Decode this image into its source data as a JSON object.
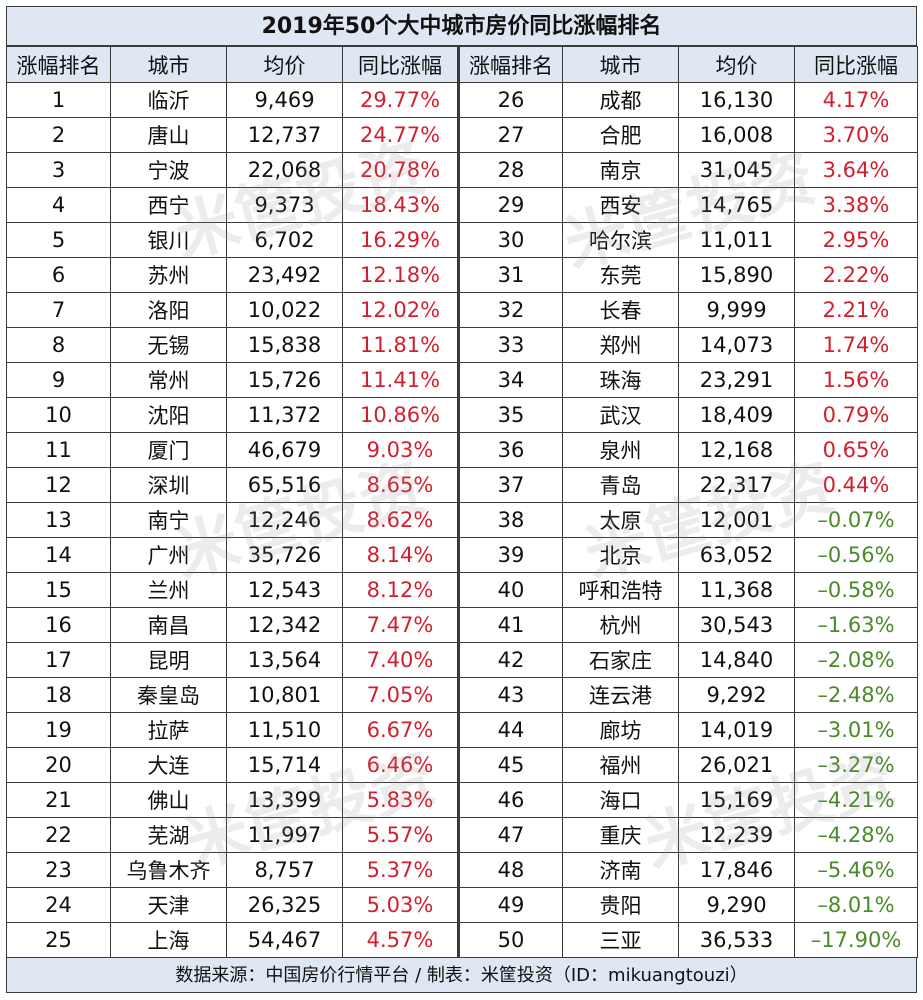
{
  "title": "2019年50个大中城市房价同比涨幅排名",
  "headers": [
    "涨幅排名",
    "城市",
    "均价",
    "同比涨幅"
  ],
  "left_rows": [
    {
      "rank": "1",
      "city": "临沂",
      "price": "9,469",
      "change": "29.77%",
      "dir": "pos"
    },
    {
      "rank": "2",
      "city": "唐山",
      "price": "12,737",
      "change": "24.77%",
      "dir": "pos"
    },
    {
      "rank": "3",
      "city": "宁波",
      "price": "22,068",
      "change": "20.78%",
      "dir": "pos"
    },
    {
      "rank": "4",
      "city": "西宁",
      "price": "9,373",
      "change": "18.43%",
      "dir": "pos"
    },
    {
      "rank": "5",
      "city": "银川",
      "price": "6,702",
      "change": "16.29%",
      "dir": "pos"
    },
    {
      "rank": "6",
      "city": "苏州",
      "price": "23,492",
      "change": "12.18%",
      "dir": "pos"
    },
    {
      "rank": "7",
      "city": "洛阳",
      "price": "10,022",
      "change": "12.02%",
      "dir": "pos"
    },
    {
      "rank": "8",
      "city": "无锡",
      "price": "15,838",
      "change": "11.81%",
      "dir": "pos"
    },
    {
      "rank": "9",
      "city": "常州",
      "price": "15,726",
      "change": "11.41%",
      "dir": "pos"
    },
    {
      "rank": "10",
      "city": "沈阳",
      "price": "11,372",
      "change": "10.86%",
      "dir": "pos"
    },
    {
      "rank": "11",
      "city": "厦门",
      "price": "46,679",
      "change": "9.03%",
      "dir": "pos"
    },
    {
      "rank": "12",
      "city": "深圳",
      "price": "65,516",
      "change": "8.65%",
      "dir": "pos"
    },
    {
      "rank": "13",
      "city": "南宁",
      "price": "12,246",
      "change": "8.62%",
      "dir": "pos"
    },
    {
      "rank": "14",
      "city": "广州",
      "price": "35,726",
      "change": "8.14%",
      "dir": "pos"
    },
    {
      "rank": "15",
      "city": "兰州",
      "price": "12,543",
      "change": "8.12%",
      "dir": "pos"
    },
    {
      "rank": "16",
      "city": "南昌",
      "price": "12,342",
      "change": "7.47%",
      "dir": "pos"
    },
    {
      "rank": "17",
      "city": "昆明",
      "price": "13,564",
      "change": "7.40%",
      "dir": "pos"
    },
    {
      "rank": "18",
      "city": "秦皇岛",
      "price": "10,801",
      "change": "7.05%",
      "dir": "pos"
    },
    {
      "rank": "19",
      "city": "拉萨",
      "price": "11,510",
      "change": "6.67%",
      "dir": "pos"
    },
    {
      "rank": "20",
      "city": "大连",
      "price": "15,714",
      "change": "6.46%",
      "dir": "pos"
    },
    {
      "rank": "21",
      "city": "佛山",
      "price": "13,399",
      "change": "5.83%",
      "dir": "pos"
    },
    {
      "rank": "22",
      "city": "芜湖",
      "price": "11,997",
      "change": "5.57%",
      "dir": "pos"
    },
    {
      "rank": "23",
      "city": "乌鲁木齐",
      "price": "8,757",
      "change": "5.37%",
      "dir": "pos"
    },
    {
      "rank": "24",
      "city": "天津",
      "price": "26,325",
      "change": "5.03%",
      "dir": "pos"
    },
    {
      "rank": "25",
      "city": "上海",
      "price": "54,467",
      "change": "4.57%",
      "dir": "pos"
    }
  ],
  "right_rows": [
    {
      "rank": "26",
      "city": "成都",
      "price": "16,130",
      "change": "4.17%",
      "dir": "pos"
    },
    {
      "rank": "27",
      "city": "合肥",
      "price": "16,008",
      "change": "3.70%",
      "dir": "pos"
    },
    {
      "rank": "28",
      "city": "南京",
      "price": "31,045",
      "change": "3.64%",
      "dir": "pos"
    },
    {
      "rank": "29",
      "city": "西安",
      "price": "14,765",
      "change": "3.38%",
      "dir": "pos"
    },
    {
      "rank": "30",
      "city": "哈尔滨",
      "price": "11,011",
      "change": "2.95%",
      "dir": "pos"
    },
    {
      "rank": "31",
      "city": "东莞",
      "price": "15,890",
      "change": "2.22%",
      "dir": "pos"
    },
    {
      "rank": "32",
      "city": "长春",
      "price": "9,999",
      "change": "2.21%",
      "dir": "pos"
    },
    {
      "rank": "33",
      "city": "郑州",
      "price": "14,073",
      "change": "1.74%",
      "dir": "pos"
    },
    {
      "rank": "34",
      "city": "珠海",
      "price": "23,291",
      "change": "1.56%",
      "dir": "pos"
    },
    {
      "rank": "35",
      "city": "武汉",
      "price": "18,409",
      "change": "0.79%",
      "dir": "pos"
    },
    {
      "rank": "36",
      "city": "泉州",
      "price": "12,168",
      "change": "0.65%",
      "dir": "pos"
    },
    {
      "rank": "37",
      "city": "青岛",
      "price": "22,317",
      "change": "0.44%",
      "dir": "pos"
    },
    {
      "rank": "38",
      "city": "太原",
      "price": "12,001",
      "change": "–0.07%",
      "dir": "neg"
    },
    {
      "rank": "39",
      "city": "北京",
      "price": "63,052",
      "change": "–0.56%",
      "dir": "neg"
    },
    {
      "rank": "40",
      "city": "呼和浩特",
      "price": "11,368",
      "change": "–0.58%",
      "dir": "neg"
    },
    {
      "rank": "41",
      "city": "杭州",
      "price": "30,543",
      "change": "–1.63%",
      "dir": "neg"
    },
    {
      "rank": "42",
      "city": "石家庄",
      "price": "14,840",
      "change": "–2.08%",
      "dir": "neg"
    },
    {
      "rank": "43",
      "city": "连云港",
      "price": "9,292",
      "change": "–2.48%",
      "dir": "neg"
    },
    {
      "rank": "44",
      "city": "廊坊",
      "price": "14,019",
      "change": "–3.01%",
      "dir": "neg"
    },
    {
      "rank": "45",
      "city": "福州",
      "price": "26,021",
      "change": "–3.27%",
      "dir": "neg"
    },
    {
      "rank": "46",
      "city": "海口",
      "price": "15,169",
      "change": "–4.21%",
      "dir": "neg"
    },
    {
      "rank": "47",
      "city": "重庆",
      "price": "12,239",
      "change": "–4.28%",
      "dir": "neg"
    },
    {
      "rank": "48",
      "city": "济南",
      "price": "17,846",
      "change": "–5.46%",
      "dir": "neg"
    },
    {
      "rank": "49",
      "city": "贵阳",
      "price": "9,290",
      "change": "–8.01%",
      "dir": "neg"
    },
    {
      "rank": "50",
      "city": "三亚",
      "price": "36,533",
      "change": "–17.90%",
      "dir": "neg"
    }
  ],
  "footer": "数据来源：中国房价行情平台 / 制表：米筐投资（ID：mikuangtouzi）",
  "watermark": "米筐投资",
  "colors": {
    "positive": "#d21f2e",
    "negative": "#4a8a28",
    "header_bg": "#dfe7f3"
  }
}
